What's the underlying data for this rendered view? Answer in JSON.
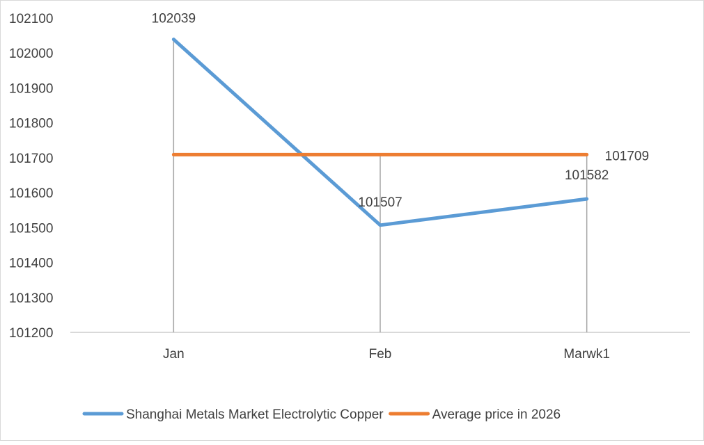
{
  "chart_data": {
    "type": "line",
    "title": "",
    "xlabel": "",
    "ylabel": "",
    "categories": [
      "Jan",
      "Feb",
      "Marwk1"
    ],
    "series": [
      {
        "name": "Shanghai Metals Market Electrolytic Copper",
        "values": [
          102039,
          101507,
          101582
        ],
        "color": "#5b9bd5",
        "labels": [
          "102039",
          "101507",
          "101582"
        ]
      },
      {
        "name": "Average price in 2026",
        "values": [
          101709,
          101709,
          101709
        ],
        "color": "#ed7d31",
        "labels": [
          "",
          "",
          "101709"
        ]
      }
    ],
    "ylim": [
      101200,
      102100
    ],
    "yticks": [
      101200,
      101300,
      101400,
      101500,
      101600,
      101700,
      101800,
      101900,
      102000,
      102100
    ],
    "ytick_labels": [
      "101200",
      "101300",
      "101400",
      "101500",
      "101600",
      "101700",
      "101800",
      "101900",
      "102000",
      "102100"
    ],
    "grid": false,
    "drop_lines": true,
    "legend_position": "bottom"
  }
}
